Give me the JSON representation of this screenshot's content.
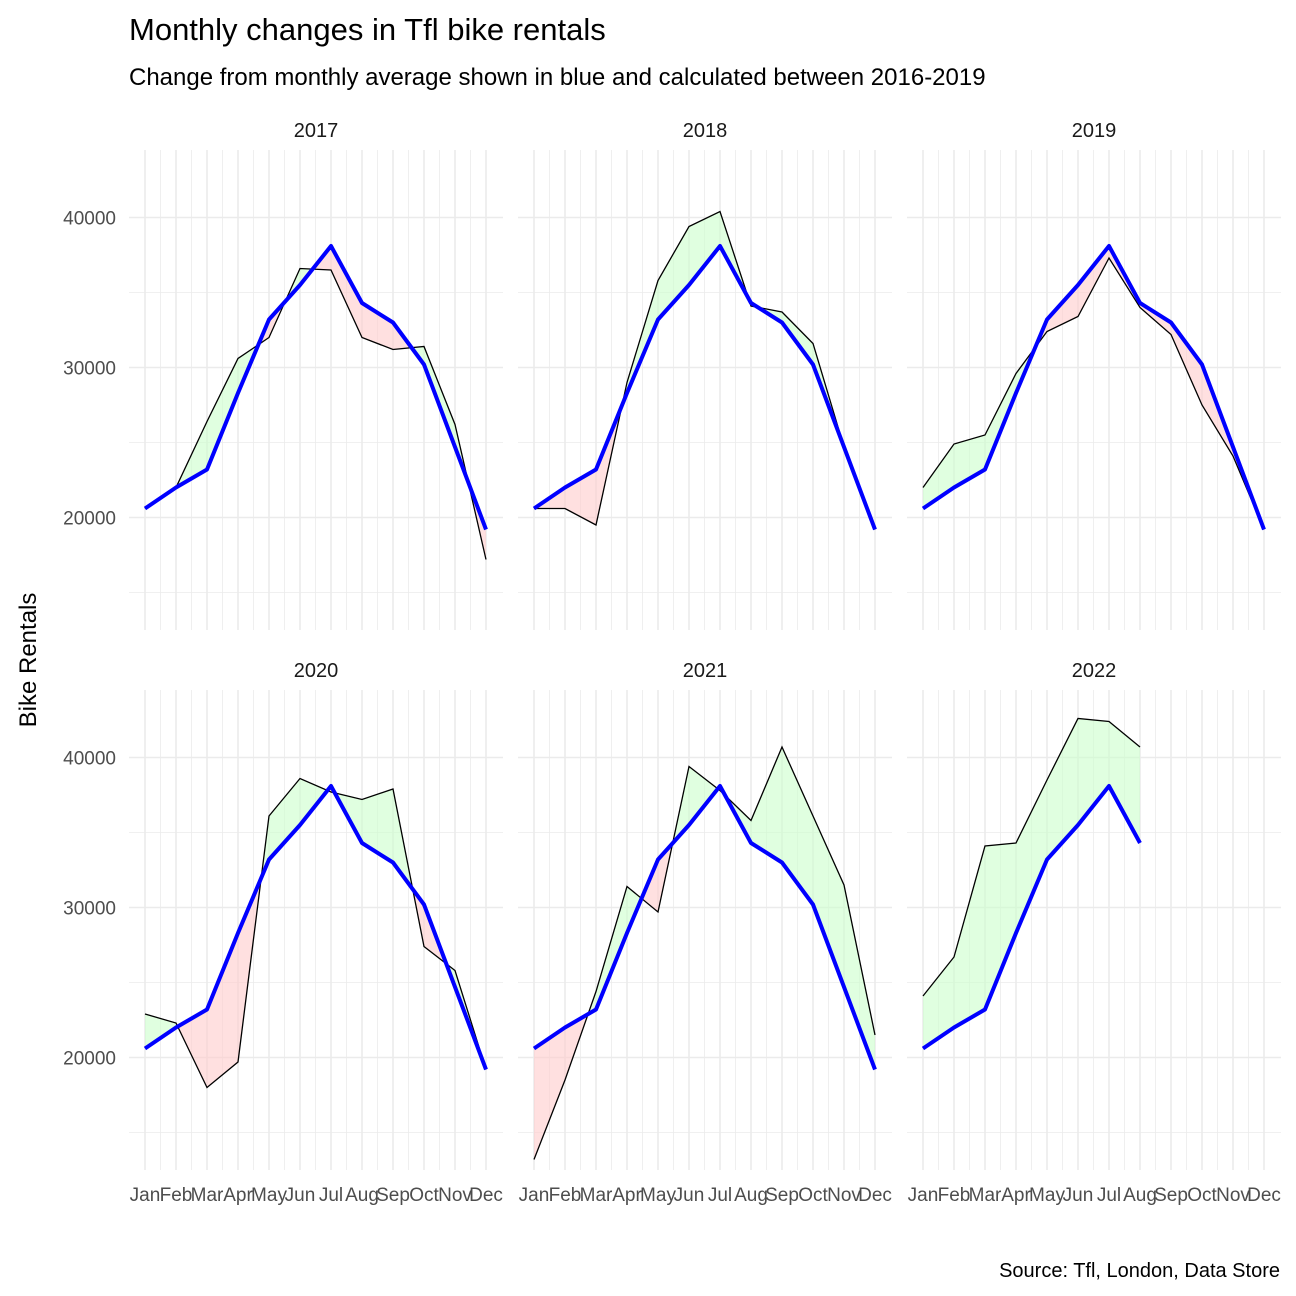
{
  "chart_data": {
    "type": "line",
    "title": "Monthly changes in Tfl bike rentals",
    "subtitle": "Change from monthly average shown in blue and calculated between 2016-2019",
    "ylabel": "Bike Rentals",
    "xlabel": "",
    "caption": "Source: Tfl, London, Data Store",
    "months": [
      "Jan",
      "Feb",
      "Mar",
      "Apr",
      "May",
      "Jun",
      "Jul",
      "Aug",
      "Sep",
      "Oct",
      "Nov",
      "Dec"
    ],
    "y_ticks": [
      20000,
      30000,
      40000
    ],
    "ylim": [
      12500,
      44500
    ],
    "grid": true,
    "colors": {
      "average": "#0000ff",
      "actual": "#000000",
      "above": "#ccffcc",
      "below": "#ffcccc",
      "grid": "#ebebeb"
    },
    "average": [
      20600,
      22000,
      23200,
      28300,
      33200,
      35500,
      38100,
      34300,
      33000,
      30200,
      24700,
      19200
    ],
    "panels": [
      {
        "year": "2017",
        "actual": [
          20600,
          22000,
          26400,
          30600,
          32000,
          36600,
          36500,
          32000,
          31200,
          31400,
          26200,
          17200
        ]
      },
      {
        "year": "2018",
        "actual": [
          20600,
          20600,
          19500,
          29000,
          35800,
          39400,
          40400,
          34100,
          33700,
          31600,
          24700,
          19200
        ]
      },
      {
        "year": "2019",
        "actual": [
          22000,
          24900,
          25500,
          29600,
          32400,
          33400,
          37300,
          34000,
          32200,
          27500,
          24100,
          19200
        ]
      },
      {
        "year": "2020",
        "actual": [
          22900,
          22300,
          18000,
          19700,
          36100,
          38600,
          37700,
          37200,
          37900,
          27400,
          25800,
          19200
        ]
      },
      {
        "year": "2021",
        "actual": [
          13200,
          18500,
          24400,
          31400,
          29700,
          39400,
          37800,
          35800,
          40700,
          36100,
          31500,
          21500
        ]
      },
      {
        "year": "2022",
        "actual": [
          24100,
          26700,
          34100,
          34300,
          38500,
          42600,
          42400,
          40700
        ]
      }
    ]
  }
}
